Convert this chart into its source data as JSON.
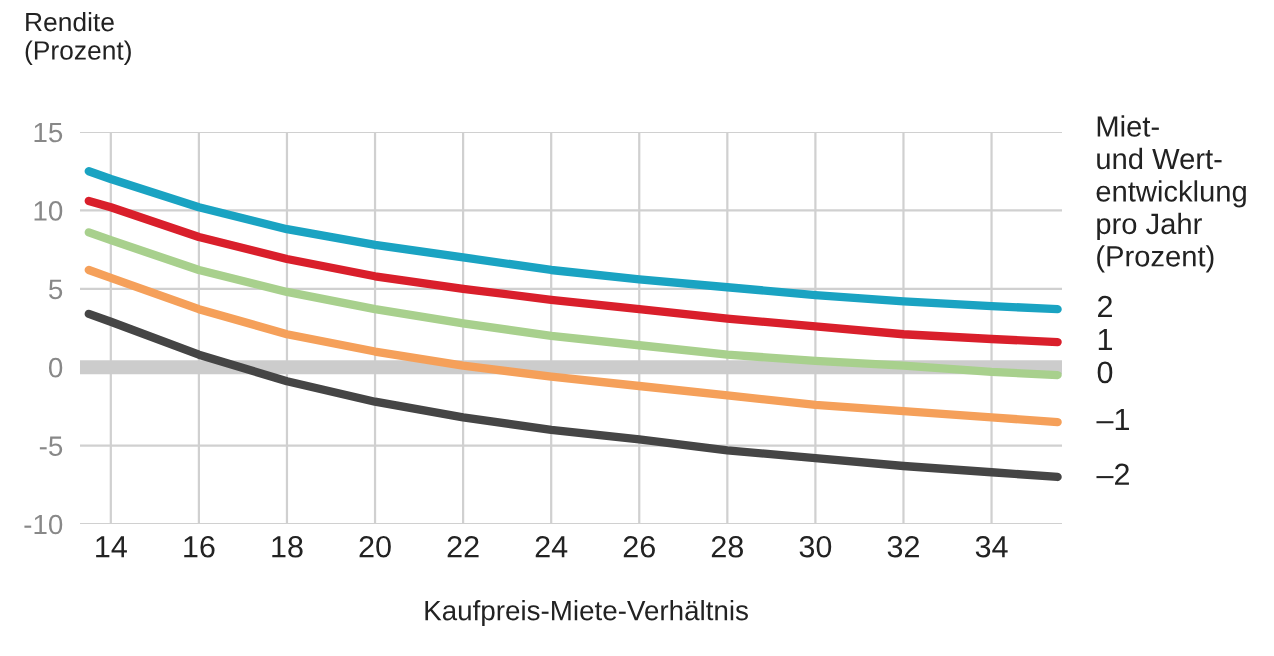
{
  "chart_data": {
    "type": "line",
    "ylabel": "Rendite\n(Prozent)",
    "xlabel": "Kaufpreis-Miete-Verhältnis",
    "legend_title": "Miet-\nund Wert-\nentwicklung\npro Jahr\n(Prozent)",
    "x": [
      13.5,
      14,
      16,
      18,
      20,
      22,
      24,
      26,
      28,
      30,
      32,
      34,
      35.5
    ],
    "series": [
      {
        "name": "2",
        "color": "#1aa3c2",
        "values": [
          12.5,
          12,
          10.2,
          8.8,
          7.8,
          7.0,
          6.2,
          5.6,
          5.1,
          4.6,
          4.2,
          3.9,
          3.7
        ]
      },
      {
        "name": "1",
        "color": "#d91f2b",
        "values": [
          10.6,
          10.2,
          8.3,
          6.9,
          5.8,
          5.0,
          4.3,
          3.7,
          3.1,
          2.6,
          2.1,
          1.8,
          1.6
        ]
      },
      {
        "name": "0",
        "color": "#a8d08d",
        "values": [
          8.6,
          8.1,
          6.2,
          4.8,
          3.7,
          2.8,
          2.0,
          1.4,
          0.8,
          0.4,
          0.1,
          -0.3,
          -0.5
        ]
      },
      {
        "name": "–1",
        "color": "#f5a05a",
        "values": [
          6.2,
          5.7,
          3.7,
          2.1,
          1.0,
          0.1,
          -0.6,
          -1.2,
          -1.8,
          -2.4,
          -2.8,
          -3.2,
          -3.5
        ]
      },
      {
        "name": "–2",
        "color": "#454545",
        "values": [
          3.4,
          2.9,
          0.8,
          -0.9,
          -2.2,
          -3.2,
          -4.0,
          -4.6,
          -5.3,
          -5.8,
          -6.3,
          -6.7,
          -7.0
        ]
      }
    ],
    "xlim": [
      13.3,
      35.6
    ],
    "xticks": [
      14,
      16,
      18,
      20,
      22,
      24,
      26,
      28,
      30,
      32,
      34
    ],
    "ylim": [
      -10,
      15
    ],
    "yticks": [
      -10,
      -5,
      0,
      5,
      10,
      15
    ],
    "ref_lines": [
      {
        "axis": "y",
        "value": 0,
        "color": "#cccccc"
      }
    ],
    "grid": true,
    "legend": "right",
    "marker": "none",
    "line_style": "solid"
  }
}
